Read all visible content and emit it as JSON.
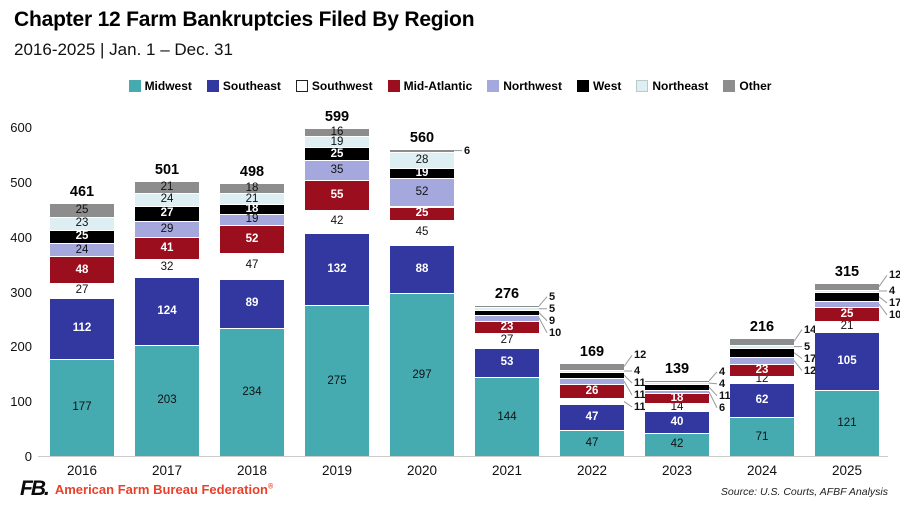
{
  "header": {
    "title": "Chapter 12 Farm Bankruptcies Filed By Region",
    "subtitle": "2016-2025 | Jan. 1 – Dec. 31"
  },
  "footer": {
    "logo_text": "FB.",
    "org_name": "American Farm Bureau Federation",
    "trademark": "®",
    "source": "Source: U.S. Courts, AFBF Analysis"
  },
  "colors": {
    "brand_red": "#e8402b",
    "axis_line": "#cccccc",
    "leader_line": "#999999",
    "background": "#ffffff"
  },
  "chart_data": {
    "type": "bar",
    "stacked": true,
    "title": "Chapter 12 Farm Bankruptcies Filed By Region",
    "subtitle": "2016-2025 | Jan. 1 – Dec. 31",
    "xlabel": "",
    "ylabel": "",
    "ylim": [
      0,
      600
    ],
    "yticks": [
      0,
      100,
      200,
      300,
      400,
      500,
      600
    ],
    "grid": false,
    "legend_position": "top",
    "categories": [
      "2016",
      "2017",
      "2018",
      "2019",
      "2020",
      "2021",
      "2022",
      "2023",
      "2024",
      "2025"
    ],
    "series": [
      {
        "name": "Midwest",
        "color": "#46abb1",
        "label_color": "#111111",
        "values": [
          177,
          203,
          234,
          275,
          297,
          144,
          47,
          42,
          71,
          121
        ]
      },
      {
        "name": "Southeast",
        "color": "#32389f",
        "label_color": "#ffffff",
        "values": [
          112,
          124,
          89,
          132,
          88,
          53,
          47,
          40,
          62,
          105
        ]
      },
      {
        "name": "Southwest",
        "color": "#ffffff",
        "label_color": "#111111",
        "values": [
          27,
          32,
          47,
          42,
          45,
          27,
          11,
          14,
          12,
          21
        ]
      },
      {
        "name": "Mid-Atlantic",
        "color": "#9a0e1d",
        "label_color": "#ffffff",
        "values": [
          48,
          41,
          52,
          55,
          25,
          23,
          26,
          18,
          23,
          25
        ]
      },
      {
        "name": "Northwest",
        "color": "#a5a8dc",
        "label_color": "#111111",
        "values": [
          24,
          29,
          19,
          35,
          52,
          10,
          11,
          6,
          12,
          10
        ]
      },
      {
        "name": "West",
        "color": "#000000",
        "label_color": "#ffffff",
        "values": [
          25,
          27,
          18,
          25,
          19,
          9,
          11,
          11,
          17,
          17
        ]
      },
      {
        "name": "Northeast",
        "color": "#ddeff2",
        "label_color": "#111111",
        "values": [
          23,
          24,
          21,
          19,
          28,
          5,
          4,
          4,
          5,
          4
        ]
      },
      {
        "name": "Other",
        "color": "#8d8d8d",
        "label_color": "#111111",
        "values": [
          25,
          21,
          18,
          16,
          6,
          5,
          12,
          4,
          14,
          12
        ]
      }
    ],
    "totals": [
      461,
      501,
      498,
      599,
      560,
      276,
      169,
      139,
      216,
      315
    ],
    "callouts": [
      [],
      [],
      [],
      [],
      [
        "Other"
      ],
      [
        "Northwest",
        "West",
        "Northeast",
        "Other"
      ],
      [
        "Southwest",
        "Northwest",
        "West",
        "Northeast",
        "Other"
      ],
      [
        "Northwest",
        "West",
        "Northeast",
        "Other"
      ],
      [
        "Northwest",
        "West",
        "Northeast",
        "Other"
      ],
      [
        "Northwest",
        "West",
        "Northeast",
        "Other"
      ]
    ]
  }
}
